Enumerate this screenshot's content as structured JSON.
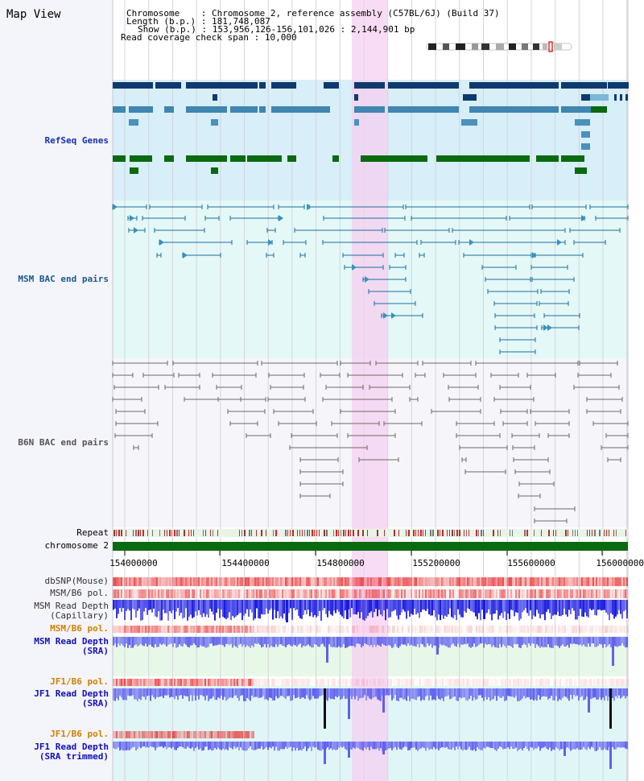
{
  "view_title": "Map View",
  "header": {
    "chromosome_key": "Chromosome",
    "chromosome_value": "Chromosome 2, reference assembly (C57BL/6J) (Build 37)",
    "length_key": "Length (b.p.)",
    "length_value": "181,748,087",
    "show_key": "Show (b.p.)",
    "show_value": "153,956,126-156,101,026 : 2,144,901 bp",
    "span_key": "Read coverage check span",
    "span_value": "10,000"
  },
  "tracks": {
    "refseq": "RefSeq Genes",
    "msm_bac": "MSM BAC end pairs",
    "b6n_bac": "B6N BAC end pairs",
    "repeat": "Repeat",
    "chromosome": "chromosome 2",
    "dbsnp": "dbSNP(Mouse)",
    "msm_b6_pol_1": "MSM/B6 pol.",
    "msm_depth_cap_1": "MSM Read Depth",
    "msm_depth_cap_2": "(Capillary)",
    "msm_b6_pol_2": "MSM/B6 pol.",
    "msm_depth_sra_1": "MSM Read Depth",
    "msm_depth_sra_2": "(SRA)",
    "jf1_b6_pol_1": "JF1/B6 pol.",
    "jf1_depth_sra_1": "JF1 Read Depth",
    "jf1_depth_sra_2": "(SRA)",
    "jf1_b6_pol_2": "JF1/B6 pol.",
    "jf1_depth_trim_1": "JF1 Read Depth",
    "jf1_depth_trim_2": "(SRA trimmed)"
  },
  "axis_ticks": [
    "154000000",
    "154400000",
    "154800000",
    "155200000",
    "155600000",
    "156000000"
  ],
  "colors": {
    "refseq_label": "#1a2fb0",
    "msm_label": "#1a5a8a",
    "b6n_label": "#555555",
    "orange_label": "#d08000",
    "blue_label": "#1010c0",
    "highlight": "#f6d0f0",
    "refseq_bg": "#d8eef8",
    "msm_bg": "#e4f8f8",
    "b6n_bg": "#f0f0f6"
  }
}
